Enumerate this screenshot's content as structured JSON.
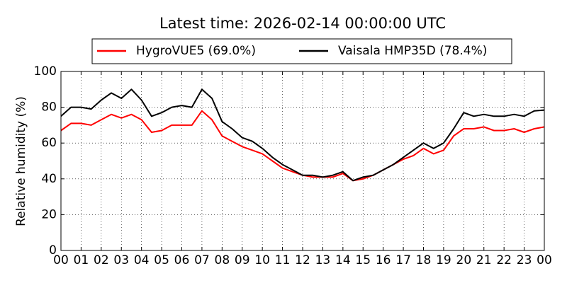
{
  "chart_data": {
    "type": "line",
    "title": "Latest time: 2026-02-14 00:00:00 UTC",
    "y_label": "Relative humidity (%)",
    "x": [
      0,
      0.5,
      1,
      1.5,
      2,
      2.5,
      3,
      3.5,
      4,
      4.5,
      5,
      5.5,
      6,
      6.5,
      7,
      7.5,
      8,
      8.5,
      9,
      9.5,
      10,
      10.5,
      11,
      11.5,
      12,
      12.5,
      13,
      13.5,
      14,
      14.5,
      15,
      15.5,
      16,
      16.5,
      17,
      17.5,
      18,
      18.5,
      19,
      19.5,
      20,
      20.5,
      21,
      21.5,
      22,
      22.5,
      23,
      23.5,
      24
    ],
    "series": [
      {
        "name": "HygroVUE5 (69.0%)",
        "color": "#ff0000",
        "values": [
          67,
          71,
          71,
          70,
          73,
          76,
          74,
          76,
          73,
          66,
          67,
          70,
          70,
          70,
          78,
          73,
          64,
          61,
          58,
          56,
          54,
          50,
          46,
          44,
          42,
          41,
          41,
          41,
          43,
          39,
          40,
          42,
          45,
          48,
          51,
          53,
          57,
          54,
          56,
          64,
          68,
          68,
          69,
          67,
          67,
          68,
          66,
          68,
          69
        ]
      },
      {
        "name": "Vaisala HMP35D (78.4%)",
        "color": "#000000",
        "values": [
          75,
          80,
          80,
          79,
          84,
          88,
          85,
          90,
          84,
          75,
          77,
          80,
          81,
          80,
          90,
          85,
          72,
          68,
          63,
          61,
          57,
          52,
          48,
          45,
          42,
          42,
          41,
          42,
          44,
          39,
          41,
          42,
          45,
          48,
          52,
          56,
          60,
          57,
          60,
          68,
          77,
          75,
          76,
          75,
          75,
          76,
          75,
          78,
          78.4
        ]
      }
    ],
    "xlim": [
      0,
      24
    ],
    "xticks": [
      {
        "value": 0,
        "label": "00"
      },
      {
        "value": 1,
        "label": "01"
      },
      {
        "value": 2,
        "label": "02"
      },
      {
        "value": 3,
        "label": "03"
      },
      {
        "value": 4,
        "label": "04"
      },
      {
        "value": 5,
        "label": "05"
      },
      {
        "value": 6,
        "label": "06"
      },
      {
        "value": 7,
        "label": "07"
      },
      {
        "value": 8,
        "label": "08"
      },
      {
        "value": 9,
        "label": "09"
      },
      {
        "value": 10,
        "label": "10"
      },
      {
        "value": 11,
        "label": "11"
      },
      {
        "value": 12,
        "label": "12"
      },
      {
        "value": 13,
        "label": "13"
      },
      {
        "value": 14,
        "label": "14"
      },
      {
        "value": 15,
        "label": "15"
      },
      {
        "value": 16,
        "label": "16"
      },
      {
        "value": 17,
        "label": "17"
      },
      {
        "value": 18,
        "label": "18"
      },
      {
        "value": 19,
        "label": "19"
      },
      {
        "value": 20,
        "label": "20"
      },
      {
        "value": 21,
        "label": "21"
      },
      {
        "value": 22,
        "label": "22"
      },
      {
        "value": 23,
        "label": "23"
      },
      {
        "value": 24,
        "label": "00"
      }
    ],
    "ylim": [
      0,
      100
    ],
    "yticks": [
      0,
      20,
      40,
      60,
      80,
      100
    ],
    "grid": true,
    "legend": "top"
  }
}
